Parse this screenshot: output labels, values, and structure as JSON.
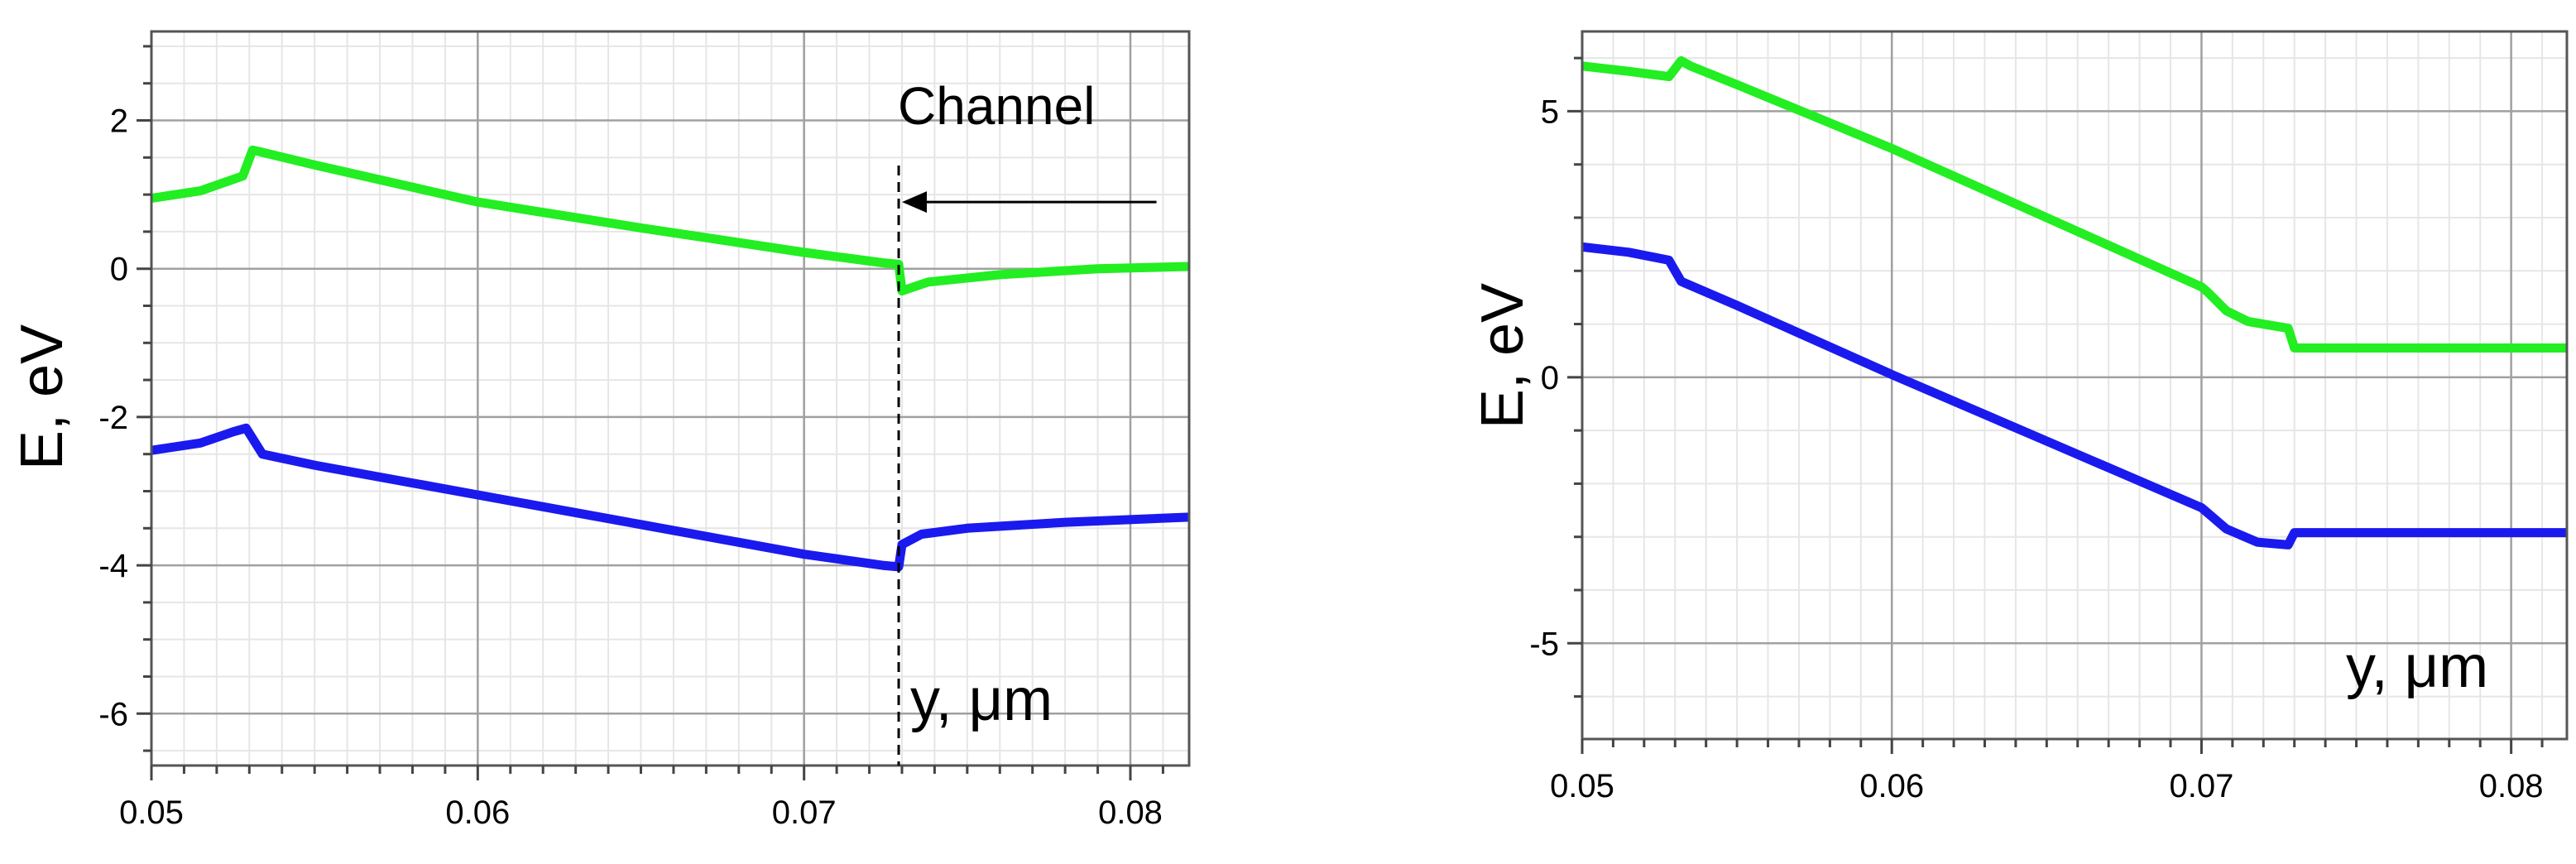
{
  "chart_data": [
    {
      "type": "line",
      "xlabel": "y, μm",
      "ylabel": "E, eV",
      "xlim": [
        0.05,
        0.0818
      ],
      "ylim": [
        -6.7,
        3.2
      ],
      "grid": true,
      "x_ticks": [
        0.05,
        0.06,
        0.07,
        0.08
      ],
      "x_tick_labels": [
        "0.05",
        "0.06",
        "0.07",
        "0.08"
      ],
      "y_ticks": [
        2,
        0,
        -2,
        -4,
        -6
      ],
      "y_tick_labels": [
        "2",
        "0",
        "-2",
        "-4",
        "-6"
      ],
      "annotations": [
        {
          "text": "Channel",
          "type": "arrow-label",
          "x_start": 0.0808,
          "x_end": 0.0729,
          "y": 0.9
        },
        {
          "type": "vertical-dashed-line",
          "x": 0.0729
        }
      ],
      "series": [
        {
          "color": "#22ee22",
          "points": [
            [
              0.05,
              0.95
            ],
            [
              0.0515,
              1.05
            ],
            [
              0.0528,
              1.25
            ],
            [
              0.0531,
              1.6
            ],
            [
              0.0533,
              1.58
            ],
            [
              0.055,
              1.4
            ],
            [
              0.06,
              0.9
            ],
            [
              0.065,
              0.55
            ],
            [
              0.07,
              0.22
            ],
            [
              0.0724,
              0.08
            ],
            [
              0.0729,
              0.06
            ],
            [
              0.073,
              -0.3
            ],
            [
              0.0738,
              -0.18
            ],
            [
              0.076,
              -0.08
            ],
            [
              0.079,
              0.0
            ],
            [
              0.0818,
              0.03
            ]
          ]
        },
        {
          "color": "#1a1aee",
          "points": [
            [
              0.05,
              -2.45
            ],
            [
              0.0515,
              -2.35
            ],
            [
              0.0525,
              -2.2
            ],
            [
              0.0529,
              -2.15
            ],
            [
              0.0534,
              -2.5
            ],
            [
              0.055,
              -2.65
            ],
            [
              0.06,
              -3.05
            ],
            [
              0.065,
              -3.45
            ],
            [
              0.07,
              -3.85
            ],
            [
              0.0724,
              -4.0
            ],
            [
              0.0729,
              -4.02
            ],
            [
              0.073,
              -3.72
            ],
            [
              0.0736,
              -3.58
            ],
            [
              0.075,
              -3.5
            ],
            [
              0.078,
              -3.42
            ],
            [
              0.0818,
              -3.35
            ]
          ]
        }
      ]
    },
    {
      "type": "line",
      "xlabel": "y, μm",
      "ylabel": "E, eV",
      "xlim": [
        0.05,
        0.0818
      ],
      "ylim": [
        -6.8,
        6.5
      ],
      "grid": true,
      "x_ticks": [
        0.05,
        0.06,
        0.07,
        0.08
      ],
      "x_tick_labels": [
        "0.05",
        "0.06",
        "0.07",
        "0.08"
      ],
      "y_ticks": [
        5,
        0,
        -5
      ],
      "y_tick_labels": [
        "5",
        "0",
        "-5"
      ],
      "series": [
        {
          "color": "#22ee22",
          "points": [
            [
              0.05,
              5.85
            ],
            [
              0.0515,
              5.75
            ],
            [
              0.0528,
              5.65
            ],
            [
              0.0532,
              5.95
            ],
            [
              0.0535,
              5.85
            ],
            [
              0.055,
              5.5
            ],
            [
              0.06,
              4.3
            ],
            [
              0.065,
              3.0
            ],
            [
              0.07,
              1.7
            ],
            [
              0.0702,
              1.6
            ],
            [
              0.0708,
              1.25
            ],
            [
              0.0715,
              1.05
            ],
            [
              0.0728,
              0.92
            ],
            [
              0.073,
              0.55
            ],
            [
              0.0818,
              0.55
            ]
          ]
        },
        {
          "color": "#1a1aee",
          "points": [
            [
              0.05,
              2.45
            ],
            [
              0.0515,
              2.35
            ],
            [
              0.0528,
              2.2
            ],
            [
              0.0532,
              1.8
            ],
            [
              0.055,
              1.35
            ],
            [
              0.06,
              0.05
            ],
            [
              0.065,
              -1.2
            ],
            [
              0.07,
              -2.45
            ],
            [
              0.0708,
              -2.85
            ],
            [
              0.0718,
              -3.1
            ],
            [
              0.0728,
              -3.15
            ],
            [
              0.073,
              -2.92
            ],
            [
              0.0818,
              -2.92
            ]
          ]
        }
      ]
    }
  ]
}
